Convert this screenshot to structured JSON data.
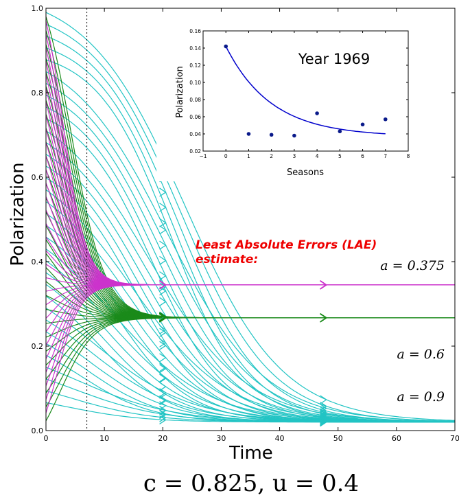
{
  "chart_data": [
    {
      "type": "line",
      "xlabel": "Time",
      "ylabel": "Polarization",
      "xlim": [
        0,
        70
      ],
      "ylim": [
        0,
        1.0
      ],
      "x_ticks": [
        "0",
        "10",
        "20",
        "30",
        "40",
        "50",
        "60",
        "70"
      ],
      "y_ticks": [
        "0.0",
        "0.2",
        "0.4",
        "0.6",
        "0.8",
        "1.0"
      ],
      "grid": false,
      "vertical_reference_line_x": 7,
      "caption": "c = 0.825, u = 0.4",
      "annotation": "Least Absolute Errors (LAE) estimate:",
      "series": [
        {
          "name": "a = 0.375",
          "color": "#cc33cc",
          "equilibrium": 0.345
        },
        {
          "name": "a = 0.6",
          "color": "#1a8a1a",
          "equilibrium": 0.267
        },
        {
          "name": "a = 0.9",
          "color": "#22c4c4",
          "equilibrium": 0.02
        }
      ]
    },
    {
      "type": "scatter",
      "title": "Year 1969",
      "xlabel": "Seasons",
      "ylabel": "Polarization",
      "xlim": [
        -1,
        8
      ],
      "ylim": [
        0.02,
        0.16
      ],
      "x_ticks": [
        "−1",
        "0",
        "1",
        "2",
        "3",
        "4",
        "5",
        "6",
        "7",
        "8"
      ],
      "y_ticks": [
        "0.02",
        "0.04",
        "0.06",
        "0.08",
        "0.10",
        "0.12",
        "0.14",
        "0.16"
      ],
      "points_x": [
        0,
        1,
        2,
        3,
        4,
        5,
        6,
        7
      ],
      "points_y": [
        0.142,
        0.04,
        0.039,
        0.038,
        0.064,
        0.043,
        0.051,
        0.057
      ],
      "fit_curve": {
        "color": "#0000cc",
        "start": 0.142,
        "asymptote": 0.037,
        "rate": 0.5
      },
      "marker_color": "#0a1a8a"
    }
  ]
}
